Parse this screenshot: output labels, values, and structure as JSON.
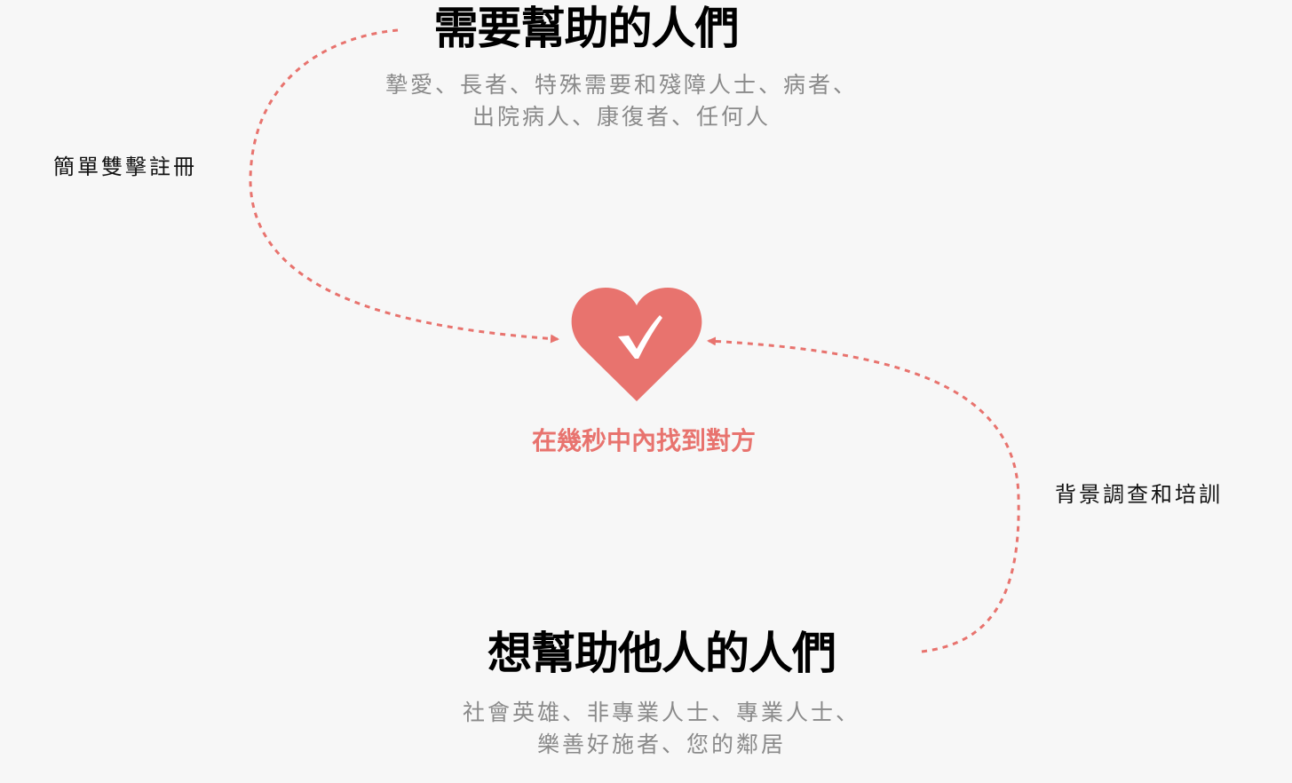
{
  "top_group": {
    "title": "需要幫助的人們",
    "description_lines": [
      "摯愛、長者、特殊需要和殘障人士、病者、",
      "出院病人、康復者、任何人"
    ]
  },
  "bottom_group": {
    "title": "想幫助他人的人們",
    "description_lines": [
      "社會英雄、非專業人士、專業人士、",
      "樂善好施者、您的鄰居"
    ]
  },
  "left_step": "簡單雙擊註冊",
  "right_step": "背景調查和培訓",
  "center": {
    "icon": "heart-check-icon",
    "caption": "在幾秒中內找到對方"
  },
  "colors": {
    "accent": "#e8736e",
    "background": "#f7f7f7",
    "title_text": "#000000",
    "muted_text": "#8a8a8a"
  }
}
